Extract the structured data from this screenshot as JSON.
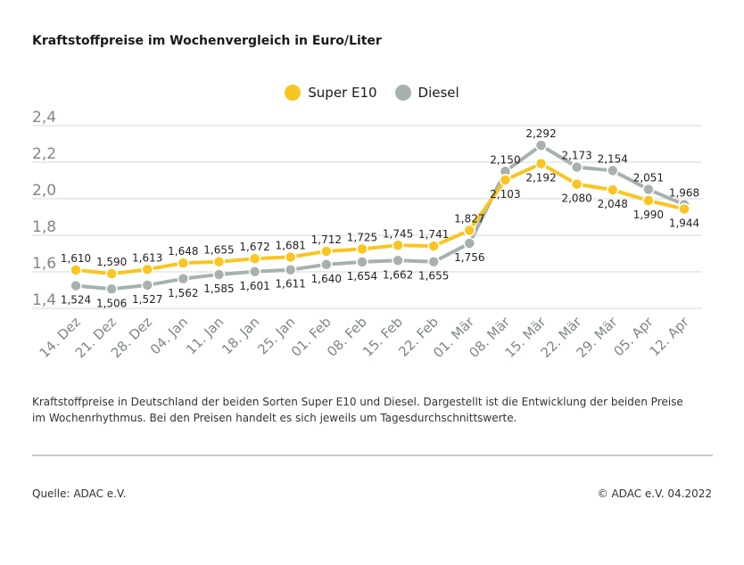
{
  "chart_data": {
    "type": "line",
    "title": "Kraftstoffpreise im Wochenvergleich in Euro/Liter",
    "categories": [
      "14. Dez",
      "21. Dez",
      "28. Dez",
      "04. Jan",
      "11. Jan",
      "18. Jan",
      "25. Jan",
      "01. Feb",
      "08. Feb",
      "15. Feb",
      "22. Feb",
      "01. Mär",
      "08. Mär",
      "15. Mär",
      "22. Mär",
      "29. Mär",
      "05. Apr",
      "12. Apr"
    ],
    "series": [
      {
        "name": "Super E10",
        "color": "#f9c520",
        "values": [
          1.61,
          1.59,
          1.613,
          1.648,
          1.655,
          1.672,
          1.681,
          1.712,
          1.725,
          1.745,
          1.741,
          1.827,
          2.103,
          2.192,
          2.08,
          2.048,
          1.99,
          1.944
        ]
      },
      {
        "name": "Diesel",
        "color": "#a7b1ae",
        "values": [
          1.524,
          1.506,
          1.527,
          1.562,
          1.585,
          1.601,
          1.611,
          1.64,
          1.654,
          1.662,
          1.655,
          1.756,
          2.15,
          2.292,
          2.173,
          2.154,
          2.051,
          1.968
        ]
      }
    ],
    "value_labels": {
      "Super E10": [
        "1,610",
        "1,590",
        "1,613",
        "1,648",
        "1,655",
        "1,672",
        "1,681",
        "1,712",
        "1,725",
        "1,745",
        "1,741",
        "1,827",
        "2,103",
        "2,192",
        "2,080",
        "2,048",
        "1,990",
        "1,944"
      ],
      "Diesel": [
        "1,524",
        "1,506",
        "1,527",
        "1,562",
        "1,585",
        "1,601",
        "1,611",
        "1,640",
        "1,654",
        "1,662",
        "1,655",
        "1,756",
        "2,150",
        "2,292",
        "2,173",
        "2,154",
        "2,051",
        "1,968"
      ]
    },
    "yticks": [
      "2,4",
      "2,2",
      "2,0",
      "1,8",
      "1,6",
      "1,4"
    ],
    "ytick_values": [
      2.4,
      2.2,
      2.0,
      1.8,
      1.6,
      1.4
    ],
    "ylim": [
      1.4,
      2.4
    ],
    "grid": true,
    "legend_position": "top-center"
  },
  "description": "Kraftstoffpreise in Deutschland der beiden Sorten Super E10 und Diesel. Dargestellt ist die Entwicklung der beiden Preise im Wochenrhythmus. Bei den Preisen handelt es sich jeweils um Tagesdurchschnittswerte.",
  "source": "Quelle: ADAC e.V.",
  "copyright": "© ADAC e.V. 04.2022"
}
